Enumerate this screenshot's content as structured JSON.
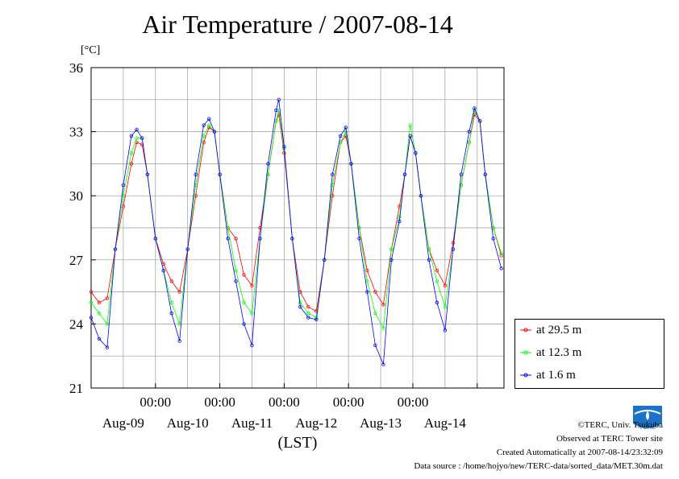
{
  "chart_data": {
    "type": "line",
    "title": "Air Temperature / 2007-08-14",
    "unit_label": "[°C]",
    "xlabel": "(LST)",
    "ylim": [
      21,
      36
    ],
    "yticks": [
      "21",
      "24",
      "27",
      "30",
      "33",
      "36"
    ],
    "xlim_hours": [
      0,
      144
    ],
    "day_labels": [
      "Aug-09",
      "Aug-10",
      "Aug-11",
      "Aug-12",
      "Aug-13",
      "Aug-14"
    ],
    "midnight_label": "00:00",
    "series": [
      {
        "name": "at 29.5 m",
        "color": "#ff0000",
        "points": [
          [
            0,
            25.5
          ],
          [
            3,
            25.0
          ],
          [
            6,
            25.2
          ],
          [
            9,
            27.5
          ],
          [
            12,
            29.5
          ],
          [
            15,
            31.5
          ],
          [
            17,
            32.5
          ],
          [
            19,
            32.4
          ],
          [
            21,
            31.0
          ],
          [
            24,
            28.0
          ],
          [
            27,
            26.8
          ],
          [
            30,
            26.0
          ],
          [
            33,
            25.5
          ],
          [
            36,
            27.5
          ],
          [
            39,
            30.0
          ],
          [
            42,
            32.5
          ],
          [
            44,
            33.2
          ],
          [
            46,
            33.0
          ],
          [
            48,
            31.0
          ],
          [
            51,
            28.5
          ],
          [
            54,
            28.0
          ],
          [
            57,
            26.3
          ],
          [
            60,
            25.8
          ],
          [
            63,
            28.5
          ],
          [
            66,
            31.0
          ],
          [
            69,
            33.5
          ],
          [
            70,
            33.8
          ],
          [
            72,
            32.0
          ],
          [
            75,
            28.0
          ],
          [
            78,
            25.5
          ],
          [
            81,
            24.8
          ],
          [
            84,
            24.6
          ],
          [
            87,
            27.0
          ],
          [
            90,
            30.0
          ],
          [
            93,
            32.5
          ],
          [
            95,
            32.8
          ],
          [
            97,
            31.5
          ],
          [
            100,
            28.5
          ],
          [
            103,
            26.5
          ],
          [
            106,
            25.5
          ],
          [
            109,
            24.9
          ],
          [
            112,
            27.5
          ],
          [
            115,
            29.5
          ],
          [
            117,
            31.0
          ],
          [
            119,
            32.8
          ],
          [
            121,
            32.0
          ],
          [
            123,
            30.0
          ],
          [
            126,
            27.5
          ],
          [
            129,
            26.5
          ],
          [
            132,
            25.8
          ],
          [
            135,
            27.8
          ],
          [
            138,
            30.5
          ],
          [
            141,
            32.5
          ],
          [
            143,
            33.8
          ],
          [
            145,
            33.5
          ],
          [
            147,
            31.0
          ],
          [
            150,
            28.5
          ],
          [
            153,
            27.2
          ]
        ]
      },
      {
        "name": "at 12.3 m",
        "color": "#00ff00",
        "points": [
          [
            0,
            25.0
          ],
          [
            3,
            24.5
          ],
          [
            6,
            24.0
          ],
          [
            9,
            27.5
          ],
          [
            12,
            30.0
          ],
          [
            15,
            32.0
          ],
          [
            17,
            32.7
          ],
          [
            19,
            32.7
          ],
          [
            21,
            31.0
          ],
          [
            24,
            28.0
          ],
          [
            27,
            26.5
          ],
          [
            30,
            25.0
          ],
          [
            33,
            24.0
          ],
          [
            36,
            27.5
          ],
          [
            39,
            30.5
          ],
          [
            42,
            32.8
          ],
          [
            44,
            33.3
          ],
          [
            46,
            33.0
          ],
          [
            48,
            31.0
          ],
          [
            51,
            28.5
          ],
          [
            54,
            26.5
          ],
          [
            57,
            25.0
          ],
          [
            60,
            24.5
          ],
          [
            63,
            28.0
          ],
          [
            66,
            31.0
          ],
          [
            69,
            33.5
          ],
          [
            70,
            34.0
          ],
          [
            72,
            32.2
          ],
          [
            75,
            28.0
          ],
          [
            78,
            25.0
          ],
          [
            81,
            24.5
          ],
          [
            84,
            24.3
          ],
          [
            87,
            27.0
          ],
          [
            90,
            30.5
          ],
          [
            93,
            32.5
          ],
          [
            95,
            33.0
          ],
          [
            97,
            31.5
          ],
          [
            100,
            28.5
          ],
          [
            103,
            26.0
          ],
          [
            106,
            24.5
          ],
          [
            109,
            23.8
          ],
          [
            112,
            27.5
          ],
          [
            115,
            29.0
          ],
          [
            117,
            31.0
          ],
          [
            119,
            33.3
          ],
          [
            121,
            32.0
          ],
          [
            123,
            30.0
          ],
          [
            126,
            27.5
          ],
          [
            129,
            26.0
          ],
          [
            132,
            24.8
          ],
          [
            135,
            27.5
          ],
          [
            138,
            30.5
          ],
          [
            141,
            32.5
          ],
          [
            143,
            34.0
          ],
          [
            145,
            33.5
          ],
          [
            147,
            31.0
          ],
          [
            150,
            28.5
          ],
          [
            153,
            27.3
          ]
        ]
      },
      {
        "name": "at 1.6 m",
        "color": "#0000ff",
        "points": [
          [
            0,
            24.3
          ],
          [
            3,
            23.3
          ],
          [
            6,
            22.9
          ],
          [
            9,
            27.5
          ],
          [
            12,
            30.5
          ],
          [
            15,
            32.8
          ],
          [
            17,
            33.1
          ],
          [
            19,
            32.7
          ],
          [
            21,
            31.0
          ],
          [
            24,
            28.0
          ],
          [
            27,
            26.5
          ],
          [
            30,
            24.5
          ],
          [
            33,
            23.2
          ],
          [
            36,
            27.5
          ],
          [
            39,
            31.0
          ],
          [
            42,
            33.3
          ],
          [
            44,
            33.6
          ],
          [
            46,
            33.0
          ],
          [
            48,
            31.0
          ],
          [
            51,
            28.0
          ],
          [
            54,
            26.0
          ],
          [
            57,
            24.0
          ],
          [
            60,
            23.0
          ],
          [
            63,
            28.0
          ],
          [
            66,
            31.5
          ],
          [
            69,
            34.0
          ],
          [
            70,
            34.5
          ],
          [
            72,
            32.3
          ],
          [
            75,
            28.0
          ],
          [
            78,
            24.8
          ],
          [
            81,
            24.3
          ],
          [
            84,
            24.2
          ],
          [
            87,
            27.0
          ],
          [
            90,
            31.0
          ],
          [
            93,
            32.8
          ],
          [
            95,
            33.2
          ],
          [
            97,
            31.5
          ],
          [
            100,
            28.0
          ],
          [
            103,
            25.5
          ],
          [
            106,
            23.0
          ],
          [
            109,
            22.1
          ],
          [
            112,
            27.0
          ],
          [
            115,
            28.8
          ],
          [
            117,
            31.0
          ],
          [
            119,
            32.8
          ],
          [
            121,
            32.0
          ],
          [
            123,
            30.0
          ],
          [
            126,
            27.0
          ],
          [
            129,
            25.0
          ],
          [
            132,
            23.7
          ],
          [
            135,
            27.5
          ],
          [
            138,
            31.0
          ],
          [
            141,
            33.0
          ],
          [
            143,
            34.1
          ],
          [
            145,
            33.5
          ],
          [
            147,
            31.0
          ],
          [
            150,
            28.0
          ],
          [
            153,
            26.6
          ]
        ]
      }
    ],
    "legend_placement": "bottom-right",
    "grid": true
  },
  "credits": {
    "copyright": "©TERC, Univ. Tsukuba",
    "observed": "Observed at TERC Tower site",
    "created": "Created Automatically at 2007-08-14/23:32:09",
    "source": "Data source : /home/hojyo/new/TERC-data/sorted_data/MET.30m.dat"
  },
  "logo_text": "TERC"
}
